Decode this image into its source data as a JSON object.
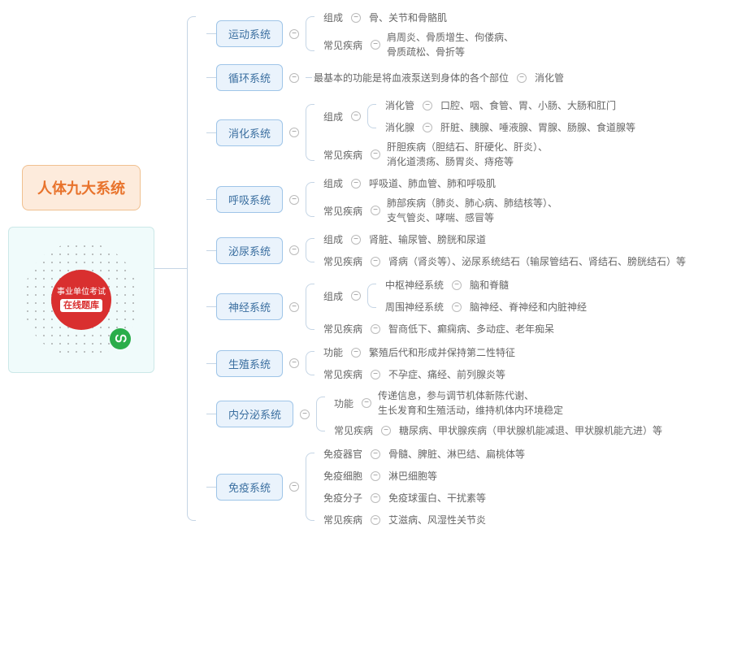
{
  "root": {
    "title": "人体九大系统"
  },
  "qr": {
    "line1": "事业单位考试",
    "line2": "在线题库",
    "badge": "ഗ"
  },
  "systems": [
    {
      "name": "运动系统",
      "children": [
        {
          "label": "组成",
          "leaf": "骨、关节和骨骼肌"
        },
        {
          "label": "常见疾病",
          "leaf_multi": [
            "肩周炎、骨质增生、佝偻病、",
            "骨质疏松、骨折等"
          ]
        }
      ]
    },
    {
      "name": "循环系统",
      "children": [
        {
          "leaf": "最基本的功能是将血液泵送到身体的各个部位",
          "tail": "消化管"
        }
      ]
    },
    {
      "name": "消化系统",
      "children": [
        {
          "label": "组成",
          "sub": [
            {
              "label": "消化管",
              "leaf": "口腔、咽、食管、胃、小肠、大肠和肛门"
            },
            {
              "label": "消化腺",
              "leaf": "肝脏、胰腺、唾液腺、胃腺、肠腺、食道腺等"
            }
          ]
        },
        {
          "label": "常见疾病",
          "leaf_multi": [
            "肝胆疾病（胆结石、肝硬化、肝炎）、",
            "消化道溃疡、肠胃炎、痔疮等"
          ]
        }
      ]
    },
    {
      "name": "呼吸系统",
      "children": [
        {
          "label": "组成",
          "leaf": "呼吸道、肺血管、肺和呼吸肌"
        },
        {
          "label": "常见疾病",
          "leaf_multi": [
            "肺部疾病（肺炎、肺心病、肺结核等）、",
            "支气管炎、哮喘、感冒等"
          ]
        }
      ]
    },
    {
      "name": "泌尿系统",
      "children": [
        {
          "label": "组成",
          "leaf": "肾脏、输尿管、膀胱和尿道"
        },
        {
          "label": "常见疾病",
          "leaf": "肾病（肾炎等）、泌尿系统结石（输尿管结石、肾结石、膀胱结石）等"
        }
      ]
    },
    {
      "name": "神经系统",
      "children": [
        {
          "label": "组成",
          "sub": [
            {
              "label": "中枢神经系统",
              "leaf": "脑和脊髓"
            },
            {
              "label": "周围神经系统",
              "leaf": "脑神经、脊神经和内脏神经"
            }
          ]
        },
        {
          "label": "常见疾病",
          "leaf": "智商低下、癫痫病、多动症、老年痴呆"
        }
      ]
    },
    {
      "name": "生殖系统",
      "children": [
        {
          "label": "功能",
          "leaf": "繁殖后代和形成并保持第二性特征"
        },
        {
          "label": "常见疾病",
          "leaf": "不孕症、痛经、前列腺炎等"
        }
      ]
    },
    {
      "name": "内分泌系统",
      "children": [
        {
          "label": "功能",
          "leaf_multi": [
            "传递信息，参与调节机体新陈代谢、",
            "生长发育和生殖活动，维持机体内环境稳定"
          ]
        },
        {
          "label": "常见疾病",
          "leaf": "糖尿病、甲状腺疾病（甲状腺机能减退、甲状腺机能亢进）等"
        }
      ]
    },
    {
      "name": "免疫系统",
      "children": [
        {
          "label": "免疫器官",
          "leaf": "骨髓、脾脏、淋巴结、扁桃体等"
        },
        {
          "label": "免疫细胞",
          "leaf": "淋巴细胞等"
        },
        {
          "label": "免疫分子",
          "leaf": "免疫球蛋白、干扰素等"
        },
        {
          "label": "常见疾病",
          "leaf": "艾滋病、风湿性关节炎"
        }
      ]
    }
  ]
}
